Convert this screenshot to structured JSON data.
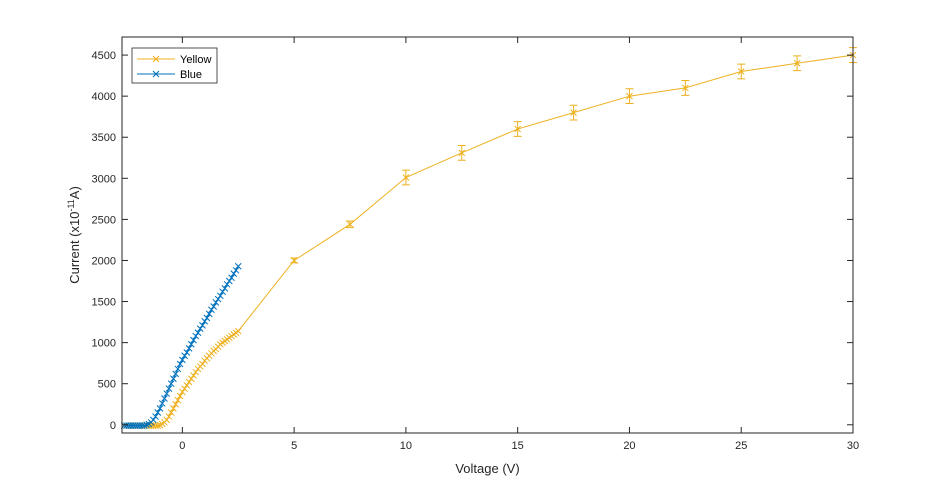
{
  "chart_data": {
    "type": "line",
    "title": "",
    "xlabel": "Voltage (V)",
    "ylabel": "Current (x10",
    "ylabel_exp": "-11",
    "ylabel_unit": "A)",
    "xlim": [
      -2.7,
      30
    ],
    "ylim": [
      -100,
      4720
    ],
    "xticks": [
      0,
      5,
      10,
      15,
      20,
      25,
      30
    ],
    "yticks": [
      0,
      500,
      1000,
      1500,
      2000,
      2500,
      3000,
      3500,
      4000,
      4500
    ],
    "grid": false,
    "legend_position": "top-left",
    "series": [
      {
        "name": "Yellow",
        "color": "#EDB120",
        "marker": "x",
        "dense_x": [
          -2.6,
          -2.5,
          -2.4,
          -2.3,
          -2.2,
          -2.1,
          -2.0,
          -1.9,
          -1.8,
          -1.7,
          -1.6,
          -1.5,
          -1.4,
          -1.3,
          -1.2,
          -1.1,
          -1.0,
          -0.9,
          -0.8,
          -0.7,
          -0.6,
          -0.5,
          -0.4,
          -0.3,
          -0.2,
          -0.1,
          0.0,
          0.1,
          0.2,
          0.3,
          0.4,
          0.5,
          0.6,
          0.7,
          0.8,
          0.9,
          1.0,
          1.1,
          1.2,
          1.3,
          1.4,
          1.5,
          1.6,
          1.7,
          1.8,
          1.9,
          2.0,
          2.1,
          2.2,
          2.3,
          2.4,
          2.5
        ],
        "dense_y": [
          -10,
          -10,
          -10,
          -10,
          -10,
          -10,
          -10,
          -10,
          -10,
          -10,
          -10,
          -10,
          -10,
          -10,
          -10,
          -10,
          -5,
          10,
          30,
          60,
          100,
          150,
          200,
          250,
          300,
          350,
          400,
          440,
          480,
          520,
          560,
          600,
          640,
          680,
          710,
          740,
          780,
          810,
          840,
          870,
          900,
          920,
          950,
          980,
          1000,
          1020,
          1040,
          1060,
          1080,
          1100,
          1120,
          1140
        ],
        "x": [
          5,
          7.5,
          10,
          12.5,
          15,
          17.5,
          20,
          22.5,
          25,
          27.5,
          30
        ],
        "y": [
          2000,
          2440,
          3010,
          3310,
          3600,
          3800,
          4000,
          4100,
          4300,
          4400,
          4500
        ],
        "error": [
          30,
          40,
          90,
          90,
          90,
          90,
          90,
          90,
          90,
          90,
          90
        ]
      },
      {
        "name": "Blue",
        "color": "#0072BD",
        "marker": "x",
        "x": [
          -2.6,
          -2.5,
          -2.4,
          -2.3,
          -2.2,
          -2.1,
          -2.0,
          -1.9,
          -1.8,
          -1.7,
          -1.6,
          -1.5,
          -1.4,
          -1.3,
          -1.2,
          -1.1,
          -1.0,
          -0.9,
          -0.8,
          -0.7,
          -0.6,
          -0.5,
          -0.4,
          -0.3,
          -0.2,
          -0.1,
          0.0,
          0.1,
          0.2,
          0.3,
          0.4,
          0.5,
          0.6,
          0.7,
          0.8,
          0.9,
          1.0,
          1.1,
          1.2,
          1.3,
          1.4,
          1.5,
          1.6,
          1.7,
          1.8,
          1.9,
          2.0,
          2.1,
          2.2,
          2.3,
          2.4,
          2.5
        ],
        "y": [
          -10,
          -10,
          -10,
          -10,
          -10,
          -10,
          -10,
          -10,
          -10,
          -10,
          0,
          10,
          30,
          60,
          100,
          150,
          200,
          260,
          320,
          380,
          440,
          500,
          560,
          620,
          680,
          740,
          790,
          840,
          880,
          930,
          980,
          1030,
          1080,
          1120,
          1170,
          1210,
          1260,
          1300,
          1350,
          1400,
          1440,
          1490,
          1530,
          1570,
          1620,
          1660,
          1710,
          1750,
          1790,
          1840,
          1880,
          1930
        ]
      }
    ]
  }
}
